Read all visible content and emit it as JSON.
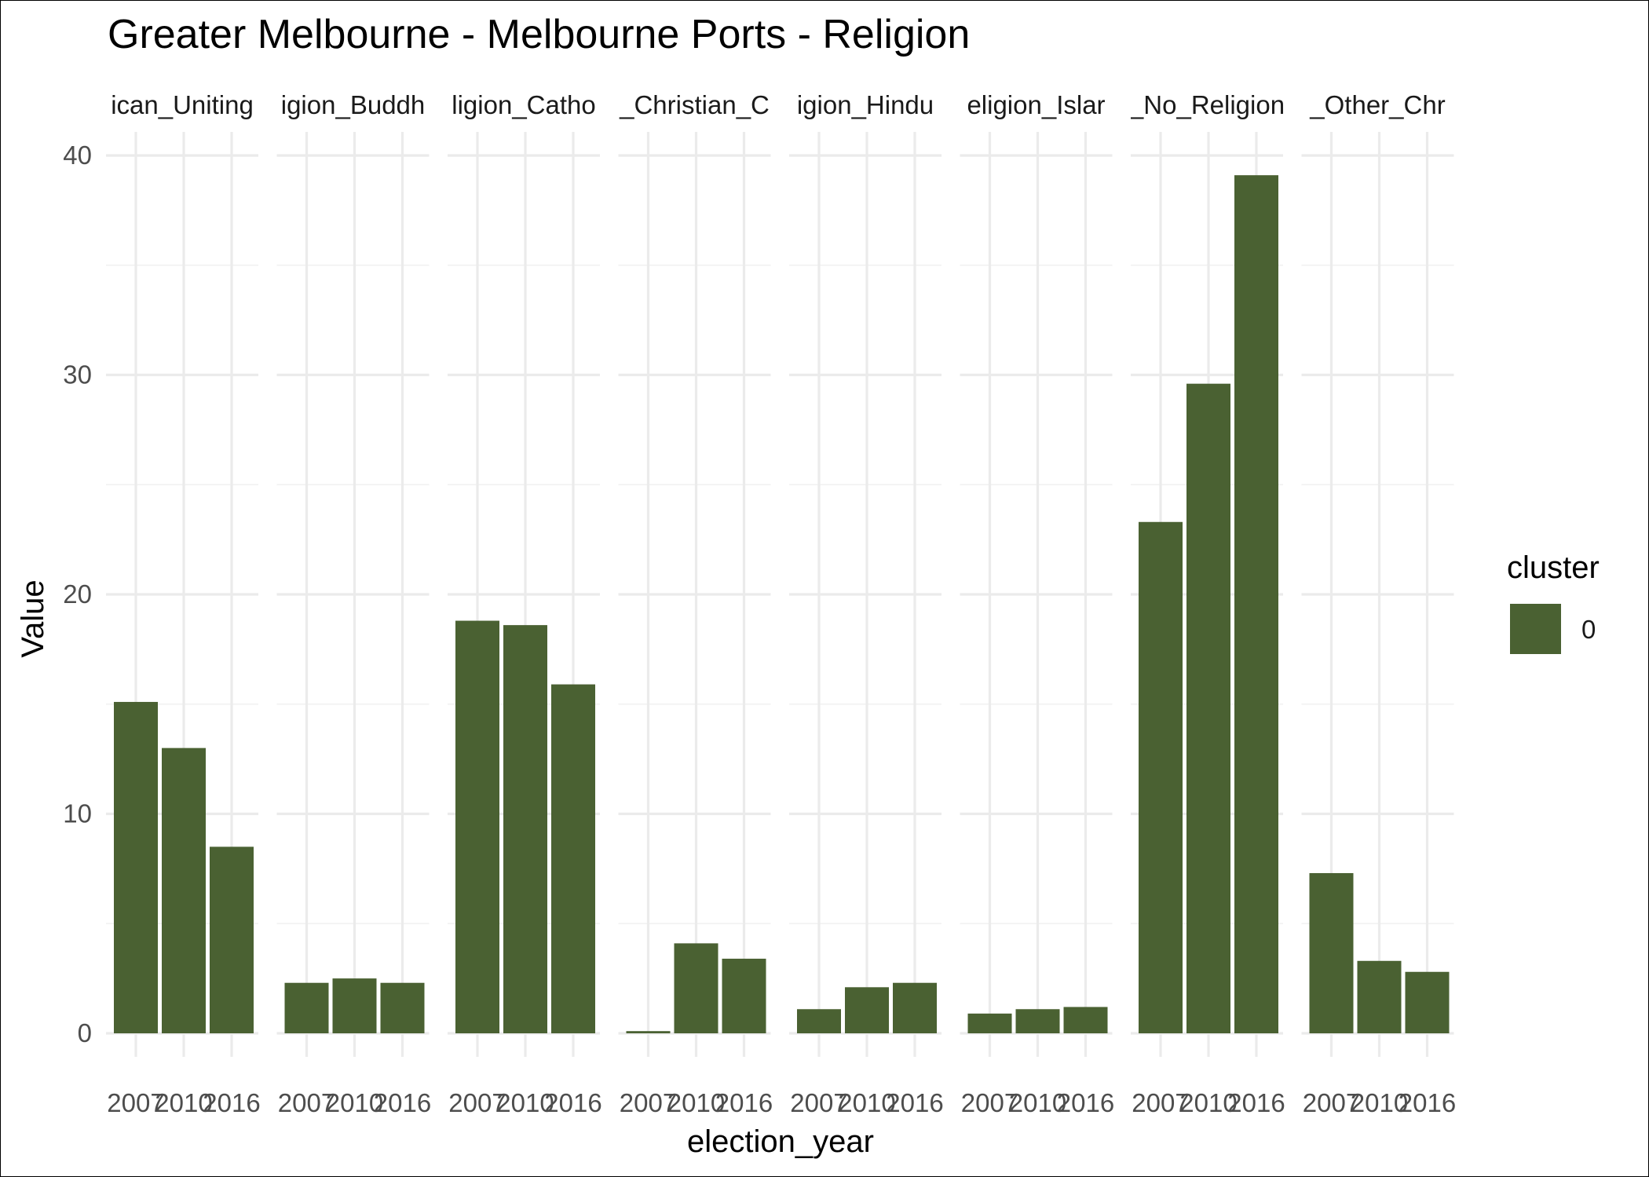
{
  "chart_data": {
    "type": "bar",
    "title": "Greater Melbourne - Melbourne Ports - Religion",
    "xlabel": "election_year",
    "ylabel": "Value",
    "ylim": [
      0,
      41
    ],
    "yticks": [
      0,
      10,
      20,
      30,
      40
    ],
    "grid": true,
    "legend": {
      "title": "cluster",
      "position": "right",
      "entries": [
        {
          "label": "0",
          "color": "#4a6132"
        }
      ]
    },
    "bar_color": "#4a6132",
    "x": [
      "2007",
      "2010",
      "2016"
    ],
    "x_tick_labels": [
      "2007",
      "2010",
      "2016"
    ],
    "facets": [
      {
        "strip": "ican_Uniting",
        "values": [
          15.1,
          13.0,
          8.5
        ]
      },
      {
        "strip": "igion_Buddh",
        "values": [
          2.3,
          2.5,
          2.3
        ]
      },
      {
        "strip": "ligion_Catho",
        "values": [
          18.8,
          18.6,
          15.9
        ]
      },
      {
        "strip": "_Christian_C",
        "values": [
          0.1,
          4.1,
          3.4
        ]
      },
      {
        "strip": "igion_Hindu",
        "values": [
          1.1,
          2.1,
          2.3
        ]
      },
      {
        "strip": "eligion_Islar",
        "values": [
          0.9,
          1.1,
          1.2
        ]
      },
      {
        "strip": "_No_Religion",
        "values": [
          23.3,
          29.6,
          39.1
        ]
      },
      {
        "strip": "_Other_Chr",
        "values": [
          7.3,
          3.3,
          2.8
        ]
      }
    ]
  }
}
